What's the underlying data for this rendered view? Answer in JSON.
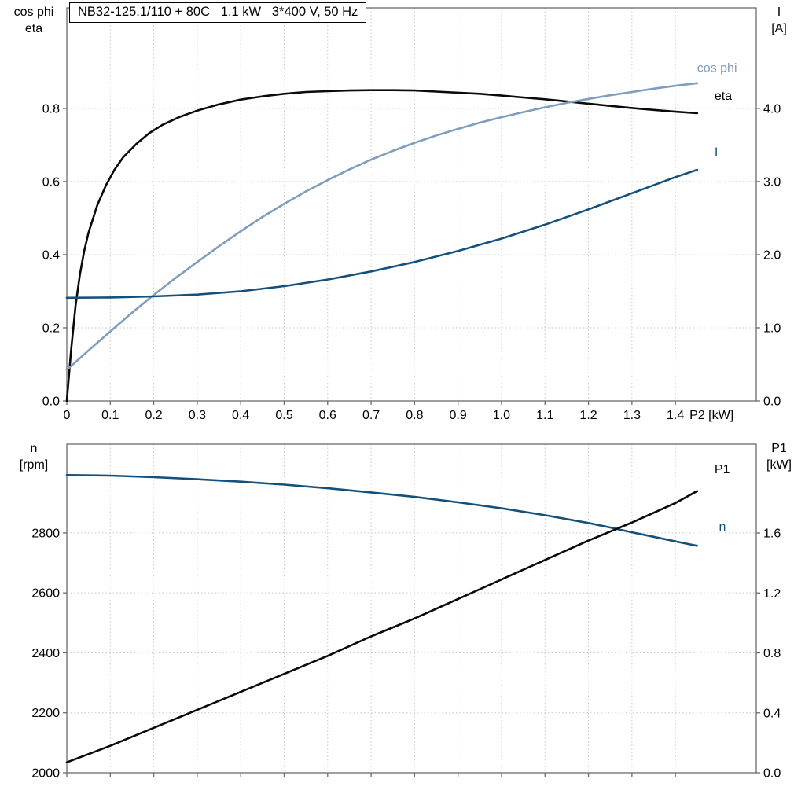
{
  "title_box": "NB32-125.1/110 + 80C   1.1 kW   3*400 V, 50 Hz",
  "colors": {
    "black": "#0a0a0a",
    "light_blue": "#7f9dbe",
    "dark_blue": "#14507c",
    "grid": "#c8c8c8",
    "axis": "#6b6b6b",
    "text": "#000000"
  },
  "chart_data": [
    {
      "type": "line",
      "name": "motor-curves",
      "grid": true,
      "xlim": [
        0,
        1.586
      ],
      "x_ticks": [
        0,
        0.1,
        0.2,
        0.3,
        0.4,
        0.5,
        0.6,
        0.7,
        0.8,
        0.9,
        1.0,
        1.1,
        1.2,
        1.3,
        1.4
      ],
      "x_tick_labels": [
        "0",
        "0.1",
        "0.2",
        "0.3",
        "0.4",
        "0.5",
        "0.6",
        "0.7",
        "0.8",
        "0.9",
        "1.0",
        "1.1",
        "1.2",
        "1.3",
        "1.4"
      ],
      "x_axis_suffix": "P2 [kW]",
      "left_axis": {
        "title_lines": [
          "cos phi",
          "eta"
        ],
        "lim": [
          0,
          1.075
        ],
        "ticks": [
          0,
          0.2,
          0.4,
          0.6,
          0.8
        ],
        "tick_labels": [
          "0.0",
          "0.2",
          "0.4",
          "0.6",
          "0.8"
        ]
      },
      "right_axis": {
        "title_lines": [
          "I",
          "[A]"
        ],
        "lim": [
          0,
          5.375
        ],
        "ticks": [
          0,
          1,
          2,
          3,
          4
        ],
        "tick_labels": [
          "0.0",
          "1.0",
          "2.0",
          "3.0",
          "4.0"
        ]
      },
      "series": [
        {
          "name": "eta",
          "axis": "left",
          "color_key": "black",
          "label": {
            "text": "eta",
            "x": 1.49,
            "y": 0.823
          },
          "points": [
            [
              0,
              0
            ],
            [
              0.01,
              0.14
            ],
            [
              0.02,
              0.26
            ],
            [
              0.03,
              0.345
            ],
            [
              0.04,
              0.41
            ],
            [
              0.05,
              0.46
            ],
            [
              0.07,
              0.535
            ],
            [
              0.09,
              0.59
            ],
            [
              0.11,
              0.633
            ],
            [
              0.13,
              0.667
            ],
            [
              0.16,
              0.703
            ],
            [
              0.19,
              0.733
            ],
            [
              0.22,
              0.755
            ],
            [
              0.26,
              0.777
            ],
            [
              0.3,
              0.794
            ],
            [
              0.35,
              0.811
            ],
            [
              0.4,
              0.824
            ],
            [
              0.45,
              0.833
            ],
            [
              0.5,
              0.84
            ],
            [
              0.55,
              0.845
            ],
            [
              0.6,
              0.847
            ],
            [
              0.65,
              0.849
            ],
            [
              0.7,
              0.85
            ],
            [
              0.75,
              0.85
            ],
            [
              0.8,
              0.849
            ],
            [
              0.85,
              0.846
            ],
            [
              0.9,
              0.843
            ],
            [
              0.95,
              0.84
            ],
            [
              1.0,
              0.835
            ],
            [
              1.05,
              0.83
            ],
            [
              1.1,
              0.825
            ],
            [
              1.15,
              0.819
            ],
            [
              1.2,
              0.813
            ],
            [
              1.25,
              0.807
            ],
            [
              1.3,
              0.801
            ],
            [
              1.35,
              0.796
            ],
            [
              1.4,
              0.791
            ],
            [
              1.45,
              0.787
            ]
          ]
        },
        {
          "name": "cos-phi",
          "axis": "left",
          "color_key": "light_blue",
          "label": {
            "text": "cos phi",
            "x": 1.45,
            "y": 0.9
          },
          "points": [
            [
              0,
              0.085
            ],
            [
              0.05,
              0.138
            ],
            [
              0.1,
              0.19
            ],
            [
              0.15,
              0.241
            ],
            [
              0.2,
              0.29
            ],
            [
              0.25,
              0.336
            ],
            [
              0.3,
              0.38
            ],
            [
              0.35,
              0.423
            ],
            [
              0.4,
              0.464
            ],
            [
              0.45,
              0.503
            ],
            [
              0.5,
              0.539
            ],
            [
              0.55,
              0.573
            ],
            [
              0.6,
              0.604
            ],
            [
              0.65,
              0.633
            ],
            [
              0.7,
              0.66
            ],
            [
              0.75,
              0.684
            ],
            [
              0.8,
              0.706
            ],
            [
              0.85,
              0.726
            ],
            [
              0.9,
              0.744
            ],
            [
              0.95,
              0.761
            ],
            [
              1.0,
              0.776
            ],
            [
              1.05,
              0.79
            ],
            [
              1.1,
              0.803
            ],
            [
              1.15,
              0.815
            ],
            [
              1.2,
              0.826
            ],
            [
              1.25,
              0.836
            ],
            [
              1.3,
              0.845
            ],
            [
              1.35,
              0.854
            ],
            [
              1.4,
              0.862
            ],
            [
              1.45,
              0.869
            ]
          ]
        },
        {
          "name": "current",
          "axis": "right",
          "color_key": "dark_blue",
          "label": {
            "text": "I",
            "x": 1.49,
            "y": 3.35
          },
          "points": [
            [
              0,
              1.41
            ],
            [
              0.1,
              1.415
            ],
            [
              0.2,
              1.43
            ],
            [
              0.3,
              1.455
            ],
            [
              0.4,
              1.5
            ],
            [
              0.5,
              1.57
            ],
            [
              0.6,
              1.66
            ],
            [
              0.7,
              1.77
            ],
            [
              0.8,
              1.9
            ],
            [
              0.9,
              2.05
            ],
            [
              1.0,
              2.22
            ],
            [
              1.1,
              2.41
            ],
            [
              1.2,
              2.62
            ],
            [
              1.3,
              2.84
            ],
            [
              1.4,
              3.06
            ],
            [
              1.45,
              3.16
            ]
          ]
        }
      ]
    },
    {
      "type": "line",
      "name": "speed-power",
      "grid": true,
      "xlim": [
        0,
        1.586
      ],
      "x_ticks": [
        0,
        0.1,
        0.2,
        0.3,
        0.4,
        0.5,
        0.6,
        0.7,
        0.8,
        0.9,
        1.0,
        1.1,
        1.2,
        1.3,
        1.4
      ],
      "x_tick_labels": [],
      "x_axis_suffix": "",
      "left_axis": {
        "title_lines": [
          "n",
          "[rpm]"
        ],
        "lim": [
          2000,
          3096
        ],
        "ticks": [
          2000,
          2200,
          2400,
          2600,
          2800
        ],
        "tick_labels": [
          "2000",
          "2200",
          "2400",
          "2600",
          "2800"
        ]
      },
      "right_axis": {
        "title_lines": [
          "P1",
          "[kW]"
        ],
        "lim": [
          0,
          2.193
        ],
        "ticks": [
          0,
          0.4,
          0.8,
          1.2,
          1.6
        ],
        "tick_labels": [
          "0.0",
          "0.4",
          "0.8",
          "1.2",
          "1.6"
        ]
      },
      "series": [
        {
          "name": "speed",
          "axis": "left",
          "color_key": "dark_blue",
          "label": {
            "text": "n",
            "x": 1.5,
            "y": 2808
          },
          "points": [
            [
              0,
              2993
            ],
            [
              0.1,
              2991
            ],
            [
              0.2,
              2986
            ],
            [
              0.3,
              2979
            ],
            [
              0.4,
              2971
            ],
            [
              0.5,
              2961
            ],
            [
              0.6,
              2949
            ],
            [
              0.7,
              2935
            ],
            [
              0.8,
              2920
            ],
            [
              0.9,
              2902
            ],
            [
              1.0,
              2882
            ],
            [
              1.1,
              2859
            ],
            [
              1.2,
              2833
            ],
            [
              1.25,
              2818
            ],
            [
              1.3,
              2802
            ],
            [
              1.35,
              2787
            ],
            [
              1.4,
              2772
            ],
            [
              1.45,
              2757
            ]
          ]
        },
        {
          "name": "input-power",
          "axis": "right",
          "color_key": "black",
          "label": {
            "text": "P1",
            "x": 1.49,
            "y": 2.0
          },
          "points": [
            [
              0,
              0.07
            ],
            [
              0.1,
              0.18
            ],
            [
              0.2,
              0.3
            ],
            [
              0.3,
              0.42
            ],
            [
              0.4,
              0.54
            ],
            [
              0.5,
              0.66
            ],
            [
              0.6,
              0.78
            ],
            [
              0.7,
              0.91
            ],
            [
              0.8,
              1.03
            ],
            [
              0.9,
              1.16
            ],
            [
              1.0,
              1.29
            ],
            [
              1.1,
              1.42
            ],
            [
              1.2,
              1.55
            ],
            [
              1.3,
              1.67
            ],
            [
              1.4,
              1.8
            ],
            [
              1.45,
              1.88
            ]
          ]
        }
      ]
    }
  ]
}
